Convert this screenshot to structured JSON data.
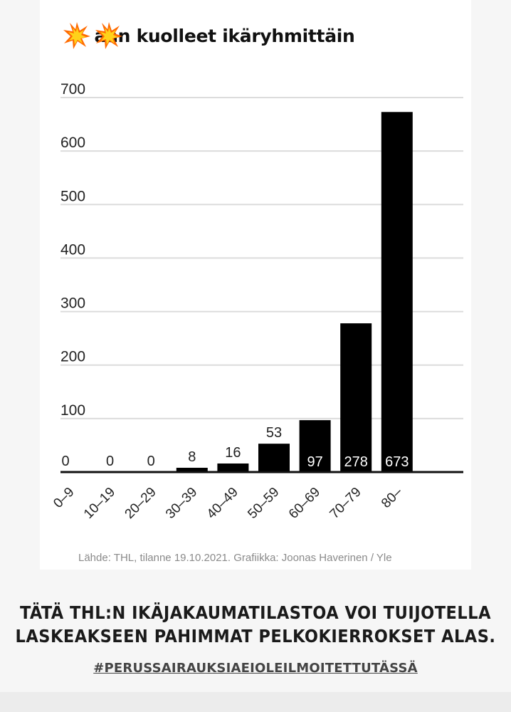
{
  "chart_data": {
    "type": "bar",
    "title": "Koronaan kuolleet ikäryhmittäin",
    "title_visible": "aan kuolleet ikäryhmittäin",
    "categories": [
      "0–9",
      "10–19",
      "20–29",
      "30–39",
      "40–49",
      "50–59",
      "60–69",
      "70–79",
      "80–"
    ],
    "values": [
      0,
      0,
      0,
      8,
      16,
      53,
      97,
      278,
      673
    ],
    "data_labels": [
      "0",
      "0",
      "0",
      "8",
      "16",
      "53",
      "97",
      "278",
      "673"
    ],
    "y_ticks": [
      "0",
      "100",
      "200",
      "300",
      "400",
      "500",
      "600",
      "700"
    ],
    "ylim": [
      0,
      700
    ],
    "grid": true,
    "bar_color": "#000000",
    "source": "Lähde: THL, tilanne 19.10.2021. Grafiikka: Joonas Haverinen / Yle"
  },
  "overlay": {
    "caption_line1": "Tätä THL:n ikäjakaumatilastoa voi tuijotella",
    "caption_line2": "laskeakseen pahimmat pelkokierrokset alas.",
    "hashtag": "#perussairauksiaeioleilmoitettutässä",
    "sticker_icon": "collision-icon"
  }
}
